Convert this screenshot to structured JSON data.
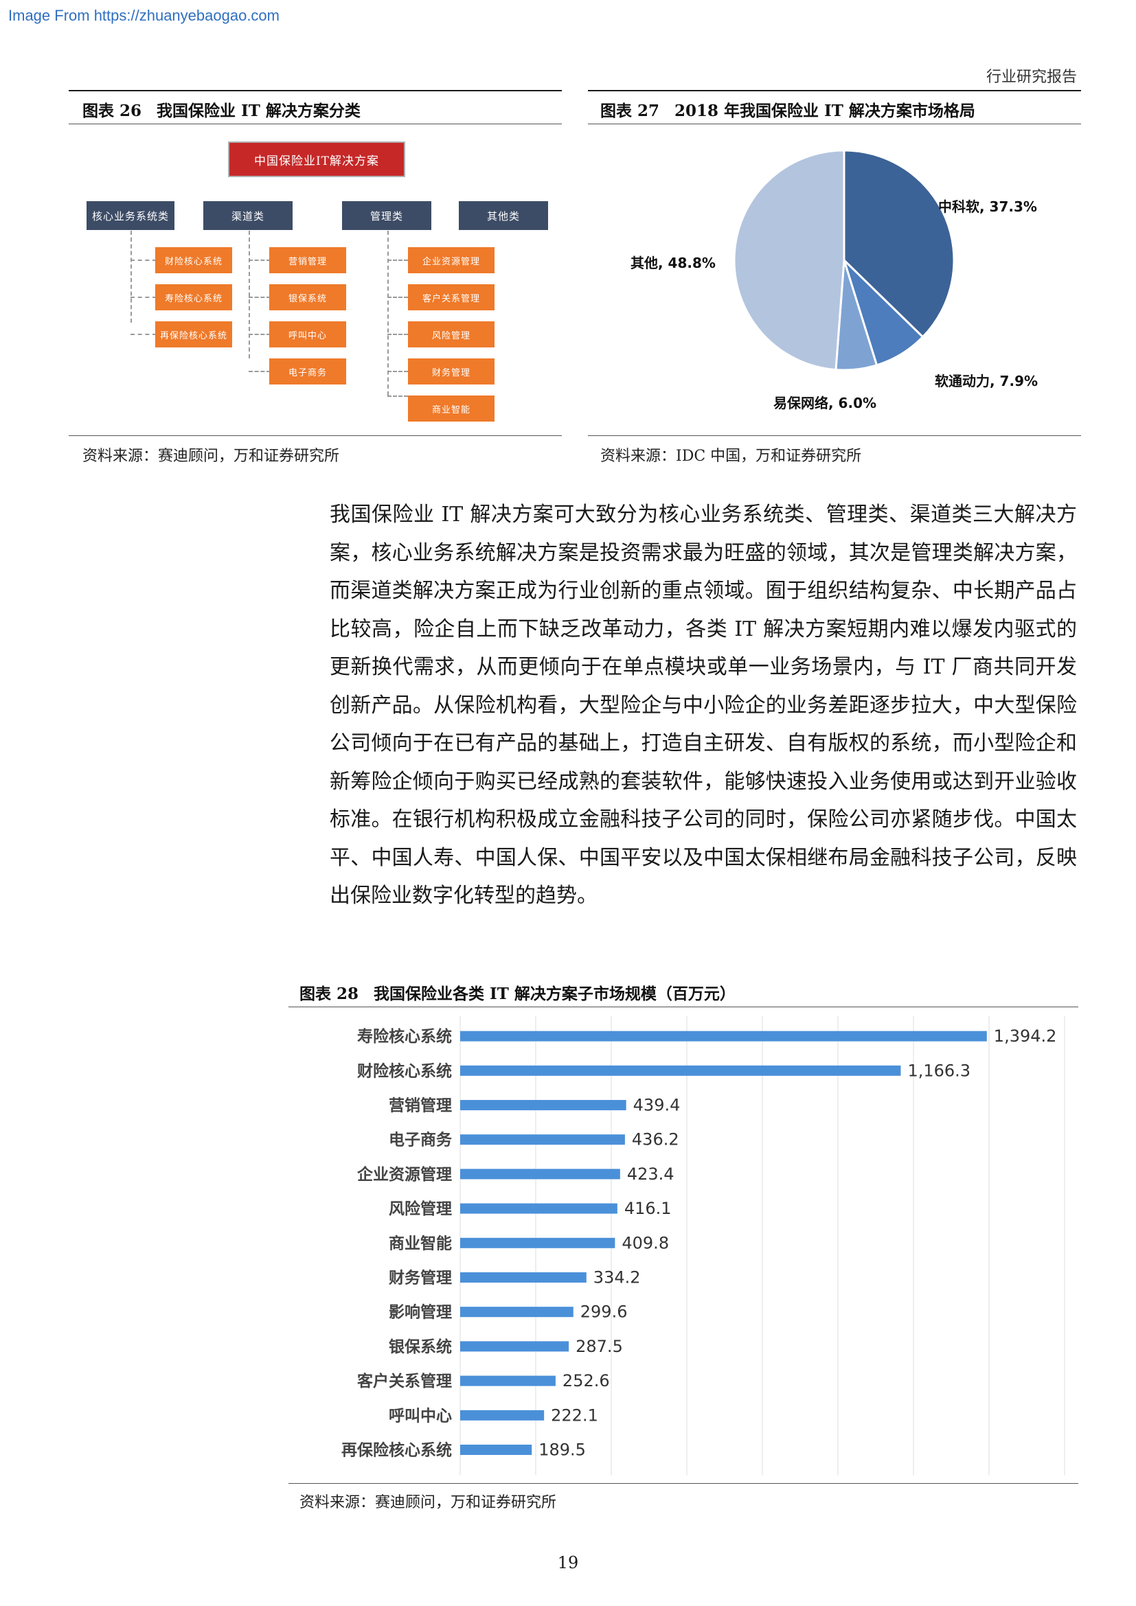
{
  "watermark": "Image From https://zhuanyebaogao.com",
  "report_type": "行业研究报告",
  "fig26": {
    "number": "图表 26",
    "title": "我国保险业 IT 解决方案分类",
    "root": "中国保险业IT解决方案",
    "categories": [
      "核心业务系统类",
      "渠道类",
      "管理类",
      "其他类"
    ],
    "core_items": [
      "财险核心系统",
      "寿险核心系统",
      "再保险核心系统"
    ],
    "channel_items": [
      "营销管理",
      "银保系统",
      "呼叫中心",
      "电子商务"
    ],
    "mgmt_items": [
      "企业资源管理",
      "客户关系管理",
      "风险管理",
      "财务管理",
      "商业智能"
    ],
    "source": "资料来源：赛迪顾问，万和证券研究所"
  },
  "fig27": {
    "number": "图表 27",
    "title": "2018 年我国保险业 IT 解决方案市场格局",
    "source": "资料来源：IDC 中国，万和证券研究所"
  },
  "paragraph": "我国保险业 IT 解决方案可大致分为核心业务系统类、管理类、渠道类三大解决方案，核心业务系统解决方案是投资需求最为旺盛的领域，其次是管理类解决方案，而渠道类解决方案正成为行业创新的重点领域。囿于组织结构复杂、中长期产品占比较高，险企自上而下缺乏改革动力，各类 IT 解决方案短期内难以爆发内驱式的更新换代需求，从而更倾向于在单点模块或单一业务场景内，与 IT 厂商共同开发创新产品。从保险机构看，大型险企与中小险企的业务差距逐步拉大，中大型保险公司倾向于在已有产品的基础上，打造自主研发、自有版权的系统，而小型险企和新筹险企倾向于购买已经成熟的套装软件，能够快速投入业务使用或达到开业验收标准。在银行机构积极成立金融科技子公司的同时，保险公司亦紧随步伐。中国太平、中国人寿、中国人保、中国平安以及中国太保相继布局金融科技子公司，反映出保险业数字化转型的趋势。",
  "fig28": {
    "number": "图表 28",
    "title": "我国保险业各类 IT 解决方案子市场规模（百万元）",
    "source": "资料来源：赛迪顾问，万和证券研究所"
  },
  "page_number": "19",
  "colors": {
    "pie_main": "#3c6397",
    "pie_mid": "#4d7dbd",
    "pie_light": "#7ea3d3",
    "pie_other": "#b3c4de",
    "bar": "#4a90d9",
    "org_root": "#c62828",
    "org_cat": "#3d4c66",
    "org_leaf": "#ef7a2a"
  },
  "chart_data": [
    {
      "type": "pie",
      "labels": [
        "中科软",
        "软通动力",
        "易保网络",
        "其他"
      ],
      "values": [
        37.3,
        7.9,
        6.0,
        48.8
      ],
      "display_labels": [
        "中科软, 37.3%",
        "软通动力, 7.9%",
        "易保网络, 6.0%",
        "其他, 48.8%"
      ],
      "title": "",
      "unit": "%"
    },
    {
      "type": "bar",
      "orientation": "horizontal",
      "categories": [
        "寿险核心系统",
        "财险核心系统",
        "营销管理",
        "电子商务",
        "企业资源管理",
        "风险管理",
        "商业智能",
        "财务管理",
        "影响管理",
        "银保系统",
        "客户关系管理",
        "呼叫中心",
        "再保险核心系统"
      ],
      "values": [
        1394.2,
        1166.3,
        439.4,
        436.2,
        423.4,
        416.1,
        409.8,
        334.2,
        299.6,
        287.5,
        252.6,
        222.1,
        189.5
      ],
      "value_labels": [
        "1,394.2",
        "1,166.3",
        "439.4",
        "436.2",
        "423.4",
        "416.1",
        "409.8",
        "334.2",
        "299.6",
        "287.5",
        "252.6",
        "222.1",
        "189.5"
      ],
      "xlim": [
        0,
        1600
      ],
      "grid": true,
      "legend": "none"
    }
  ]
}
